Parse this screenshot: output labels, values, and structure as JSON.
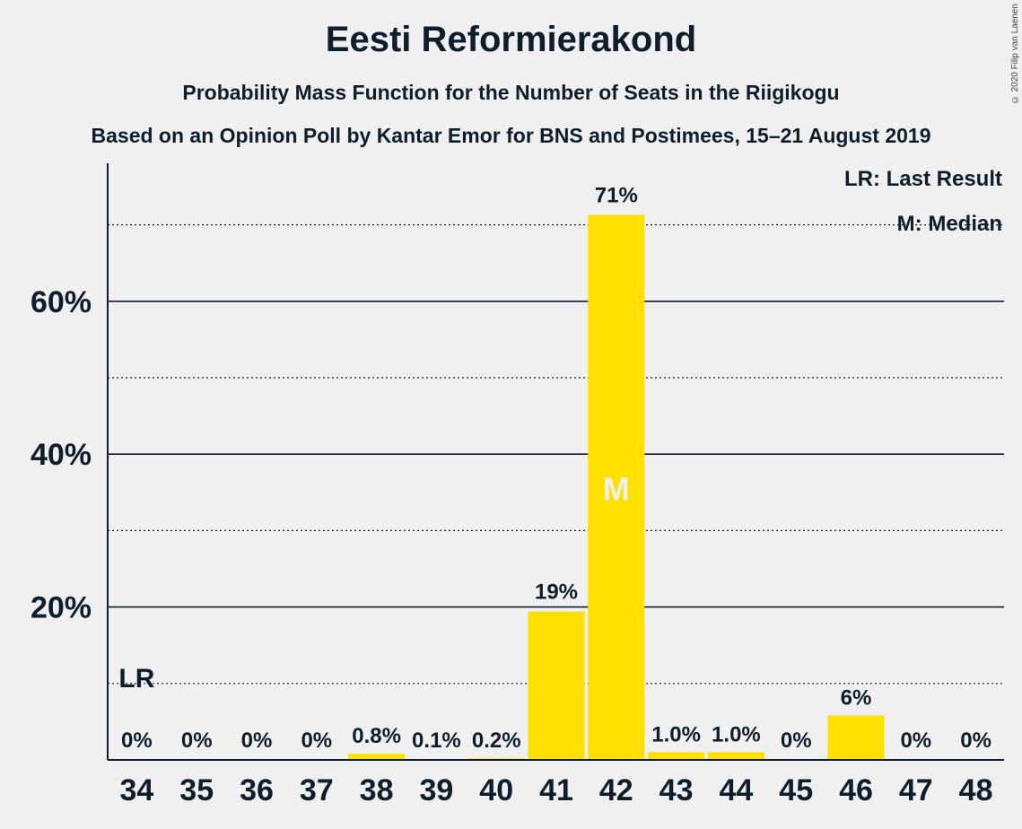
{
  "header": {
    "title": "Eesti Reformierakond",
    "subtitle": "Probability Mass Function for the Number of Seats in the Riigikogu",
    "subtitle2": "Based on an Opinion Poll by Kantar Emor for BNS and Postimees, 15–21 August 2019",
    "copyright": "© 2020 Filip van Laenen"
  },
  "legend": {
    "last_result": "LR: Last Result",
    "median": "M: Median"
  },
  "colors": {
    "bar": "#ffe000",
    "text": "#0f1e2d",
    "background": "#f0f0f0",
    "median_label": "#f0f0f0"
  },
  "chart_data": {
    "type": "bar",
    "title": "Eesti Reformierakond",
    "categories": [
      "34",
      "35",
      "36",
      "37",
      "38",
      "39",
      "40",
      "41",
      "42",
      "43",
      "44",
      "45",
      "46",
      "47",
      "48"
    ],
    "values": [
      0,
      0,
      0,
      0,
      0.8,
      0.1,
      0.2,
      19.4,
      71.3,
      1.0,
      1.0,
      0,
      5.8,
      0,
      0
    ],
    "value_labels": [
      "0%",
      "0%",
      "0%",
      "0%",
      "0.8%",
      "0.1%",
      "0.2%",
      "19%",
      "71%",
      "1.0%",
      "1.0%",
      "0%",
      "6%",
      "0%",
      "0%"
    ],
    "ylim": [
      0,
      78
    ],
    "yticks_major": [
      20,
      40,
      60
    ],
    "yticks_minor": [
      10,
      30,
      50,
      70
    ],
    "ytick_labels": [
      "20%",
      "40%",
      "60%"
    ],
    "last_result": {
      "category": "34",
      "label": "LR"
    },
    "median": {
      "category": "42",
      "label": "M"
    },
    "grid": true,
    "legend_position": "top-right"
  }
}
